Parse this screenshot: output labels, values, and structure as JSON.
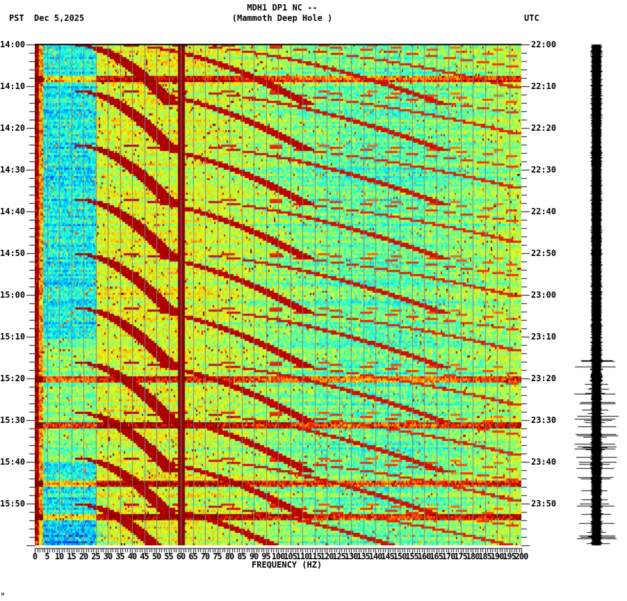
{
  "header": {
    "station_line": "MDH1 DP1 NC --",
    "station_name": "(Mammoth Deep Hole )",
    "left_timezone": "PST",
    "date": "Dec 5,2025",
    "right_timezone": "UTC"
  },
  "axes": {
    "left_time_labels": [
      "14:00",
      "14:10",
      "14:20",
      "14:30",
      "14:40",
      "14:50",
      "15:00",
      "15:10",
      "15:20",
      "15:30",
      "15:40",
      "15:50"
    ],
    "right_time_labels": [
      "22:00",
      "22:10",
      "22:20",
      "22:30",
      "22:40",
      "22:50",
      "23:00",
      "23:10",
      "23:20",
      "23:30",
      "23:40",
      "23:50"
    ],
    "x_tick_labels": [
      "0",
      "5",
      "10",
      "15",
      "20",
      "25",
      "30",
      "35",
      "40",
      "45",
      "50",
      "55",
      "60",
      "65",
      "70",
      "75",
      "80",
      "85",
      "90",
      "95",
      "100",
      "105",
      "110",
      "115",
      "120",
      "125",
      "130",
      "135",
      "140",
      "145",
      "150",
      "155",
      "160",
      "165",
      "170",
      "175",
      "180",
      "185",
      "190",
      "195",
      "200"
    ],
    "xlabel": "FREQUENCY (HZ)"
  },
  "footer": {
    "corner_mark": "ᴍ"
  },
  "colors": {
    "colormap": [
      "#00008f",
      "#0040ff",
      "#00c0ff",
      "#1affe0",
      "#7fff7f",
      "#e0ff1a",
      "#ffc000",
      "#ff4000",
      "#c00000",
      "#800000"
    ],
    "gridline": "#808080",
    "trace": "#000000"
  },
  "chart_data": {
    "type": "heatmap",
    "title": "MDH1 DP1 NC -- (Mammoth Deep Hole )",
    "subtitle": "Dec 5,2025",
    "xlabel": "FREQUENCY (HZ)",
    "ylabel_left": "PST",
    "ylabel_right": "UTC",
    "xlim": [
      0,
      200
    ],
    "x_tick_step": 5,
    "ylim_pst": [
      "14:00",
      "16:00"
    ],
    "ylim_utc": [
      "22:00",
      "00:00"
    ],
    "y_tick_step_minutes": 10,
    "grid": "vertical lines every 5 Hz",
    "persistent_lines_hz": [
      0.5,
      60
    ],
    "notes": "Spectrogram with repeating gliding harmonic arcs (~10 min period), strong 60 Hz line, low-frequency (<20 Hz) quieter blue band, broadband energy bursts near 15:20, 15:31, 15:45 PST; right panel is raw seismogram trace with increased amplitude from ~15:15 PST.",
    "glide_cycles_start_minutes": [
      0,
      11,
      24,
      37,
      50,
      63,
      76,
      88,
      99,
      110
    ],
    "harmonic_count_visible": 7,
    "broadband_events_minutes": [
      8,
      80,
      91,
      105,
      113
    ],
    "seismogram_burst_minutes": [
      [
        75,
        120
      ]
    ]
  }
}
